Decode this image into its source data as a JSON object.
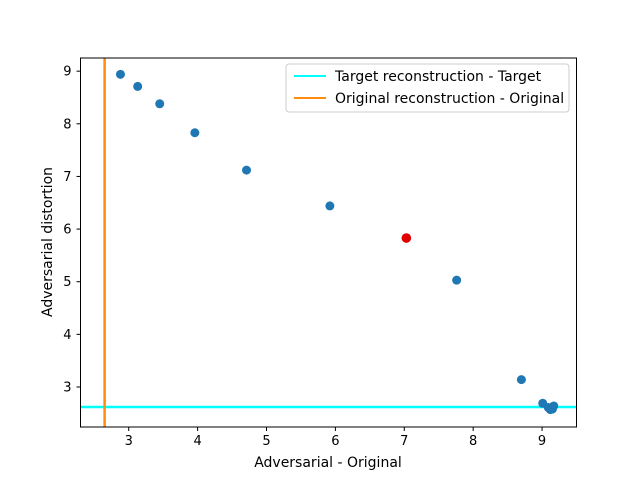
{
  "chart_data": {
    "type": "scatter",
    "title": "",
    "xlabel": "Adversarial - Original",
    "ylabel": "Adversarial distortion",
    "xlim": [
      2.3,
      9.5
    ],
    "ylim": [
      2.24,
      9.25
    ],
    "xticks": [
      3,
      4,
      5,
      6,
      7,
      8,
      9
    ],
    "yticks": [
      3,
      4,
      5,
      6,
      7,
      8,
      9
    ],
    "grid": false,
    "legend_position": "top-right",
    "points": [
      {
        "x": 2.88,
        "y": 8.94
      },
      {
        "x": 3.13,
        "y": 8.71
      },
      {
        "x": 3.45,
        "y": 8.38
      },
      {
        "x": 3.96,
        "y": 7.83
      },
      {
        "x": 4.71,
        "y": 7.12
      },
      {
        "x": 5.92,
        "y": 6.44
      },
      {
        "x": 7.76,
        "y": 5.03
      },
      {
        "x": 8.7,
        "y": 3.14
      },
      {
        "x": 9.01,
        "y": 2.69
      },
      {
        "x": 9.09,
        "y": 2.61
      },
      {
        "x": 9.12,
        "y": 2.57
      },
      {
        "x": 9.15,
        "y": 2.58
      },
      {
        "x": 9.17,
        "y": 2.64
      }
    ],
    "highlight_point": {
      "x": 7.03,
      "y": 5.83
    },
    "reference_lines": [
      {
        "orientation": "horizontal",
        "value": 2.62,
        "name": "Target reconstruction - Target",
        "color": "#00ffff"
      },
      {
        "orientation": "vertical",
        "value": 2.65,
        "name": "Original reconstruction - Original",
        "color": "#ff8c0f"
      }
    ],
    "colors": {
      "points": "#1f77b4",
      "highlight": "#e00000",
      "axes": "#000000"
    }
  }
}
